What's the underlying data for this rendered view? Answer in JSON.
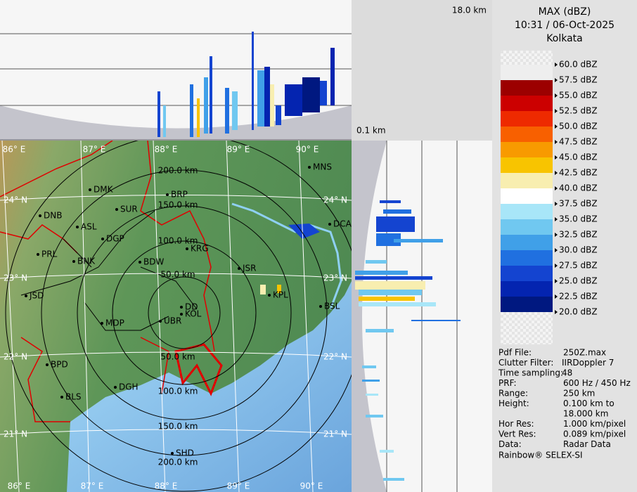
{
  "top_projection": {
    "max_height": "18.0 km",
    "min_height": "0.1 km"
  },
  "header": {
    "title": "MAX (dBZ)",
    "time": "10:31 / 06-Oct-2025",
    "station": "Kolkata"
  },
  "legend": {
    "labels": [
      "60.0 dBZ",
      "57.5 dBZ",
      "55.0 dBZ",
      "52.5 dBZ",
      "50.0 dBZ",
      "47.5 dBZ",
      "45.0 dBZ",
      "42.5 dBZ",
      "40.0 dBZ",
      "37.5 dBZ",
      "35.0 dBZ",
      "32.5 dBZ",
      "30.0 dBZ",
      "27.5 dBZ",
      "25.0 dBZ",
      "22.5 dBZ",
      "20.0 dBZ"
    ],
    "colors": [
      "#eeeeee",
      "#9c0000",
      "#cc0000",
      "#ee2a00",
      "#f86000",
      "#f89a00",
      "#f8c400",
      "#f8eeb0",
      "#ffffff",
      "#a8e6f8",
      "#70c8f0",
      "#40a0e8",
      "#2070e0",
      "#1444d0",
      "#0424b0",
      "#001880"
    ]
  },
  "info": {
    "rows": [
      {
        "label": "Pdf File:",
        "value": "250Z.max"
      },
      {
        "label": "Clutter Filter:",
        "value": "IIRDoppler 7"
      },
      {
        "label": "Time sampling:",
        "value": "48"
      },
      {
        "label": "PRF:",
        "value": "600 Hz / 450 Hz"
      },
      {
        "label": "Range:",
        "value": "250 km"
      },
      {
        "label": "Height:",
        "values": [
          "0.100 km to",
          "18.000 km"
        ]
      },
      {
        "label": "Hor Res:",
        "value": "1.000 km/pixel"
      },
      {
        "label": "Vert Res:",
        "value": "0.089 km/pixel"
      },
      {
        "label": "Data:",
        "value": "Radar Data"
      }
    ],
    "footer": "Rainbow® SELEX-SI"
  },
  "map": {
    "lon_labels_top": [
      "86° E",
      "87° E",
      "88° E",
      "89° E",
      "90° E"
    ],
    "lon_labels_bottom": [
      "86° E",
      "87° E",
      "88° E",
      "89° E",
      "90° E"
    ],
    "lat_labels_left": [
      "24° N",
      "23° N",
      "22° N",
      "21° N"
    ],
    "lat_labels_right": [
      "24° N",
      "23° N",
      "22° N",
      "21° N"
    ],
    "ring_labels_north": [
      "200.0 km",
      "150.0 km",
      "100.0 km",
      "50.0 km"
    ],
    "ring_labels_south": [
      "50.0 km",
      "100.0 km",
      "150.0 km",
      "200.0 km"
    ],
    "cities": [
      "MNS",
      "DMK",
      "BRP",
      "DNB",
      "SUR",
      "ASL",
      "DGP",
      "DCA",
      "PRL",
      "BNK",
      "KRG",
      "BDW",
      "JSR",
      "JSD",
      "DD",
      "KOL",
      "KPL",
      "UBR",
      "BSL",
      "MDP",
      "BPD",
      "DGH",
      "BLS",
      "SHD"
    ]
  }
}
